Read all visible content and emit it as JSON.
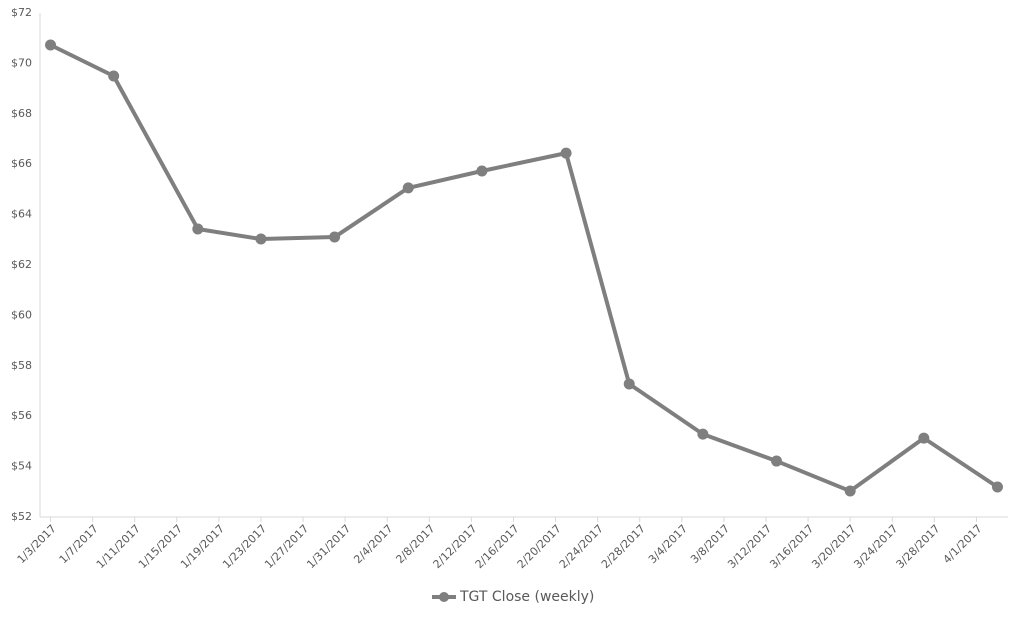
{
  "chart_data": {
    "type": "line",
    "x": [
      "2017-01-03",
      "2017-01-09",
      "2017-01-17",
      "2017-01-23",
      "2017-01-30",
      "2017-02-06",
      "2017-02-13",
      "2017-02-21",
      "2017-02-27",
      "2017-03-06",
      "2017-03-13",
      "2017-03-20",
      "2017-03-27",
      "2017-04-03"
    ],
    "series": [
      {
        "name": "TGT Close (weekly)",
        "color": "#7f7f7f",
        "values": [
          70.73,
          69.5,
          63.43,
          63.03,
          63.11,
          65.06,
          65.73,
          66.44,
          57.28,
          55.29,
          54.22,
          53.03,
          55.13,
          53.19
        ]
      }
    ],
    "xlim": [
      "2017-01-02",
      "2017-04-04"
    ],
    "xticks": [
      {
        "value": "2017-01-03",
        "label": "1/3/2017"
      },
      {
        "value": "2017-01-07",
        "label": "1/7/2017"
      },
      {
        "value": "2017-01-11",
        "label": "1/11/2017"
      },
      {
        "value": "2017-01-15",
        "label": "1/15/2017"
      },
      {
        "value": "2017-01-19",
        "label": "1/19/2017"
      },
      {
        "value": "2017-01-23",
        "label": "1/23/2017"
      },
      {
        "value": "2017-01-27",
        "label": "1/27/2017"
      },
      {
        "value": "2017-01-31",
        "label": "1/31/2017"
      },
      {
        "value": "2017-02-04",
        "label": "2/4/2017"
      },
      {
        "value": "2017-02-08",
        "label": "2/8/2017"
      },
      {
        "value": "2017-02-12",
        "label": "2/12/2017"
      },
      {
        "value": "2017-02-16",
        "label": "2/16/2017"
      },
      {
        "value": "2017-02-20",
        "label": "2/20/2017"
      },
      {
        "value": "2017-02-24",
        "label": "2/24/2017"
      },
      {
        "value": "2017-02-28",
        "label": "2/28/2017"
      },
      {
        "value": "2017-03-04",
        "label": "3/4/2017"
      },
      {
        "value": "2017-03-08",
        "label": "3/8/2017"
      },
      {
        "value": "2017-03-12",
        "label": "3/12/2017"
      },
      {
        "value": "2017-03-16",
        "label": "3/16/2017"
      },
      {
        "value": "2017-03-20",
        "label": "3/20/2017"
      },
      {
        "value": "2017-03-24",
        "label": "3/24/2017"
      },
      {
        "value": "2017-03-28",
        "label": "3/28/2017"
      },
      {
        "value": "2017-04-01",
        "label": "4/1/2017"
      }
    ],
    "ylim": [
      52,
      72
    ],
    "yticks": [
      {
        "value": 52,
        "label": "$52"
      },
      {
        "value": 54,
        "label": "$54"
      },
      {
        "value": 56,
        "label": "$56"
      },
      {
        "value": 58,
        "label": "$58"
      },
      {
        "value": 60,
        "label": "$60"
      },
      {
        "value": 62,
        "label": "$62"
      },
      {
        "value": 64,
        "label": "$64"
      },
      {
        "value": 66,
        "label": "$66"
      },
      {
        "value": 68,
        "label": "$68"
      },
      {
        "value": 70,
        "label": "$70"
      },
      {
        "value": 72,
        "label": "$72"
      }
    ],
    "grid": false,
    "legend": "bottom"
  }
}
